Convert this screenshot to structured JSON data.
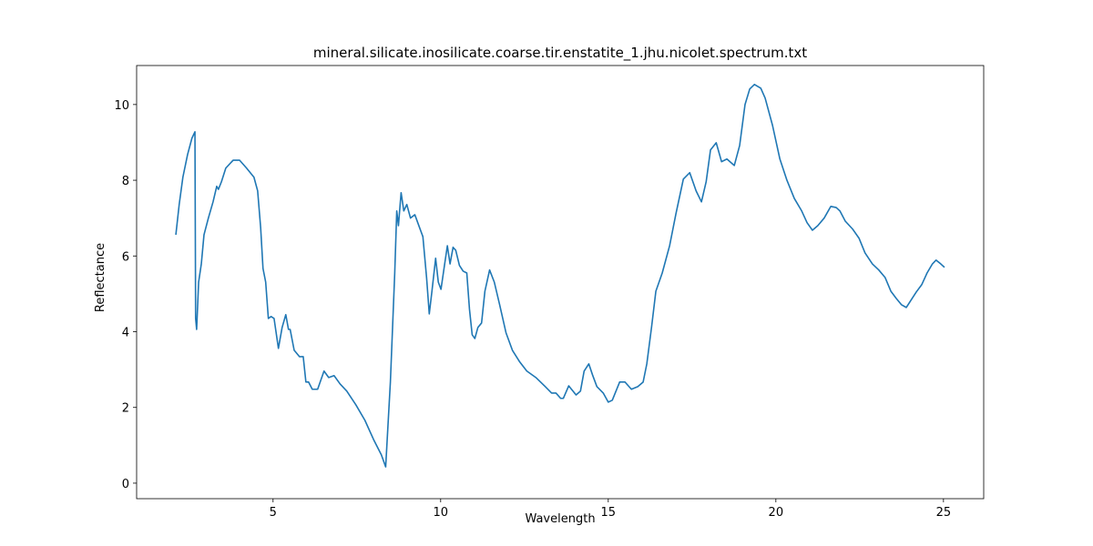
{
  "chart_data": {
    "type": "line",
    "title": "mineral.silicate.inosilicate.coarse.tir.enstatite_1.jhu.nicolet.spectrum.txt",
    "x_label": "Wavelength",
    "y_label": "Reflectance",
    "color": "#1f77b4",
    "xlim": [
      0.93,
      26.2
    ],
    "ylim": [
      -0.41,
      11.03
    ],
    "xticks": [
      5,
      10,
      15,
      20,
      25
    ],
    "yticks": [
      0,
      2,
      4,
      6,
      8,
      10
    ],
    "grid": false,
    "x": [
      2.1,
      2.2,
      2.31,
      2.45,
      2.58,
      2.67,
      2.69,
      2.72,
      2.78,
      2.86,
      2.94,
      3.07,
      3.21,
      3.32,
      3.37,
      3.46,
      3.59,
      3.81,
      4.0,
      4.21,
      4.43,
      4.54,
      4.63,
      4.7,
      4.78,
      4.86,
      4.94,
      5.03,
      5.16,
      5.27,
      5.38,
      5.46,
      5.51,
      5.63,
      5.79,
      5.9,
      5.98,
      6.06,
      6.17,
      6.33,
      6.52,
      6.66,
      6.82,
      7.0,
      7.2,
      7.47,
      7.74,
      8.0,
      8.23,
      8.36,
      8.5,
      8.63,
      8.69,
      8.74,
      8.82,
      8.9,
      8.99,
      9.1,
      9.23,
      9.37,
      9.47,
      9.58,
      9.66,
      9.74,
      9.85,
      9.93,
      10.01,
      10.12,
      10.2,
      10.28,
      10.37,
      10.45,
      10.56,
      10.67,
      10.78,
      10.86,
      10.94,
      11.02,
      11.11,
      11.22,
      11.32,
      11.46,
      11.6,
      11.76,
      11.95,
      12.14,
      12.36,
      12.57,
      12.84,
      13.12,
      13.31,
      13.44,
      13.58,
      13.66,
      13.82,
      14.04,
      14.17,
      14.28,
      14.42,
      14.53,
      14.66,
      14.85,
      15.0,
      15.12,
      15.34,
      15.5,
      15.69,
      15.88,
      16.04,
      16.15,
      16.29,
      16.42,
      16.61,
      16.83,
      17.02,
      17.24,
      17.43,
      17.62,
      17.78,
      17.92,
      18.05,
      18.22,
      18.38,
      18.54,
      18.76,
      18.92,
      19.08,
      19.22,
      19.36,
      19.55,
      19.68,
      19.9,
      20.12,
      20.33,
      20.55,
      20.77,
      20.93,
      21.09,
      21.25,
      21.44,
      21.64,
      21.8,
      21.91,
      22.07,
      22.29,
      22.48,
      22.66,
      22.88,
      23.07,
      23.26,
      23.43,
      23.59,
      23.75,
      23.89,
      24.03,
      24.19,
      24.35,
      24.51,
      24.67,
      24.78,
      24.92,
      25.03
    ],
    "values": [
      6.56,
      7.36,
      8.08,
      8.68,
      9.11,
      9.28,
      4.35,
      4.06,
      5.31,
      5.79,
      6.56,
      7.0,
      7.43,
      7.84,
      7.76,
      7.96,
      8.32,
      8.53,
      8.53,
      8.32,
      8.08,
      7.72,
      6.75,
      5.67,
      5.31,
      4.35,
      4.4,
      4.35,
      3.56,
      4.11,
      4.45,
      4.06,
      4.06,
      3.51,
      3.34,
      3.34,
      2.67,
      2.67,
      2.48,
      2.48,
      2.96,
      2.79,
      2.84,
      2.62,
      2.43,
      2.07,
      1.66,
      1.15,
      0.75,
      0.43,
      2.67,
      5.55,
      7.19,
      6.8,
      7.67,
      7.19,
      7.36,
      7.0,
      7.09,
      6.75,
      6.51,
      5.43,
      4.47,
      5.07,
      5.94,
      5.31,
      5.12,
      5.79,
      6.27,
      5.79,
      6.23,
      6.15,
      5.75,
      5.6,
      5.55,
      4.59,
      3.92,
      3.82,
      4.11,
      4.23,
      5.07,
      5.63,
      5.31,
      4.71,
      3.97,
      3.51,
      3.2,
      2.96,
      2.79,
      2.55,
      2.38,
      2.38,
      2.24,
      2.24,
      2.57,
      2.33,
      2.43,
      2.96,
      3.15,
      2.86,
      2.55,
      2.38,
      2.14,
      2.19,
      2.67,
      2.67,
      2.48,
      2.55,
      2.67,
      3.15,
      4.11,
      5.07,
      5.55,
      6.27,
      7.12,
      8.03,
      8.2,
      7.72,
      7.43,
      7.96,
      8.8,
      8.99,
      8.49,
      8.56,
      8.39,
      8.92,
      10.0,
      10.41,
      10.53,
      10.43,
      10.17,
      9.45,
      8.56,
      8.0,
      7.52,
      7.19,
      6.88,
      6.68,
      6.8,
      7.0,
      7.31,
      7.28,
      7.19,
      6.92,
      6.71,
      6.47,
      6.08,
      5.79,
      5.63,
      5.43,
      5.07,
      4.88,
      4.71,
      4.64,
      4.83,
      5.05,
      5.24,
      5.55,
      5.79,
      5.89,
      5.79,
      5.7
    ]
  }
}
